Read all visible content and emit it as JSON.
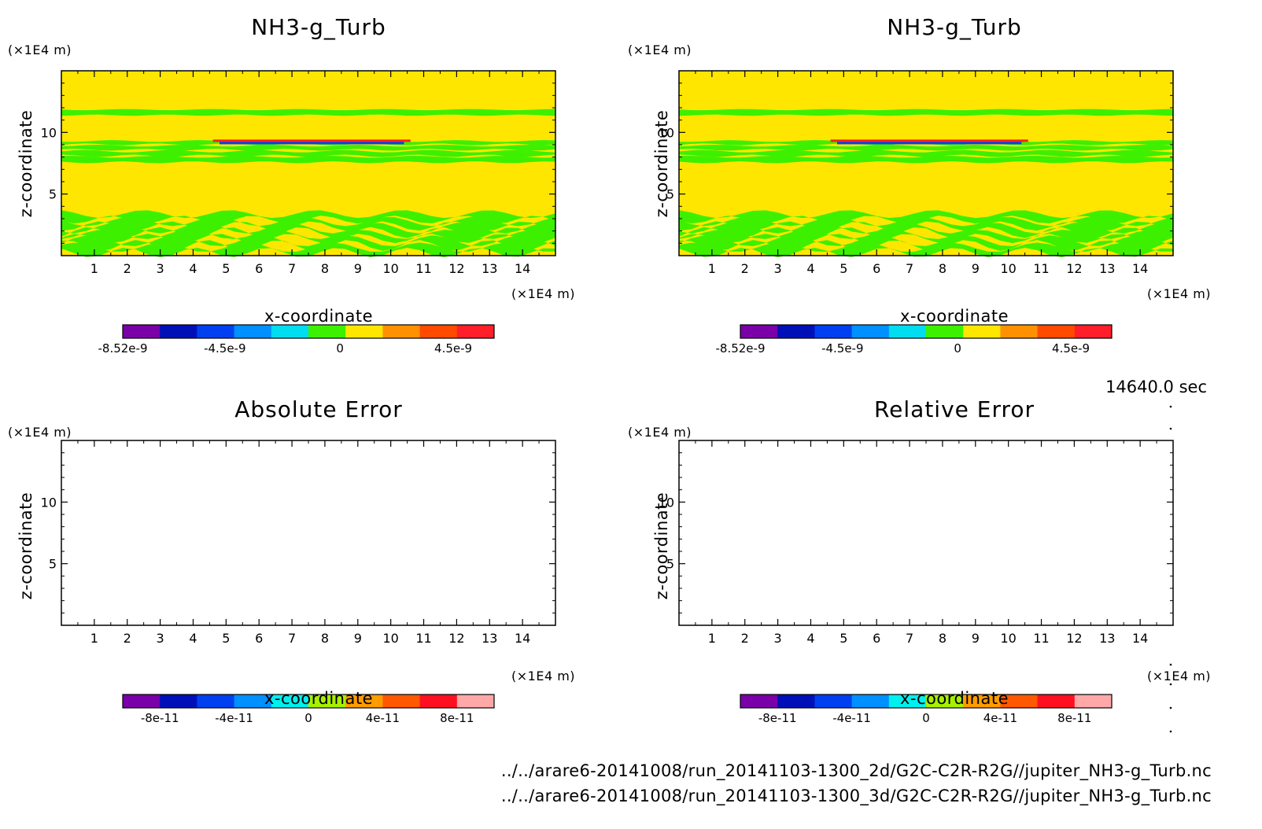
{
  "time_label": "14640.0 sec",
  "file_paths": [
    "../../arare6-20141008/run_20141103-1300_2d/G2C-C2R-R2G//jupiter_NH3-g_Turb.nc",
    "../../arare6-20141008/run_20141103-1300_3d/G2C-C2R-R2G//jupiter_NH3-g_Turb.nc"
  ],
  "colors": {
    "background_fill": "#ffe600",
    "band_fill": "#3cf000",
    "colorbar_nh3": [
      "#7a00a8",
      "#0010b8",
      "#0040f0",
      "#0090ff",
      "#00dcf0",
      "#3cf000",
      "#ffe600",
      "#ff9000",
      "#ff4a00",
      "#ff1e2a",
      "#ffb8b8"
    ],
    "colorbar_err": [
      "#7a00a8",
      "#0010b8",
      "#0040f0",
      "#0090ff",
      "#00f0f0",
      "#a8f000",
      "#ff9c00",
      "#ff5800",
      "#ff1020",
      "#ffa8a8"
    ]
  },
  "chart_data": [
    {
      "type": "heatmap",
      "title": "NH3-g_Turb",
      "xlabel": "x-coordinate",
      "ylabel": "z-coordinate",
      "x_unit": "(×1E4 m)",
      "y_unit": "(×1E4 m)",
      "xlim": [
        0,
        15
      ],
      "ylim": [
        0,
        15
      ],
      "x_ticks": [
        "1",
        "2",
        "3",
        "4",
        "5",
        "6",
        "7",
        "8",
        "9",
        "10",
        "11",
        "12",
        "13",
        "14"
      ],
      "y_ticks": [
        "5",
        "10"
      ],
      "colorbar_ticks": [
        "-8.52e-9",
        "-4.5e-9",
        "0",
        "4.5e-9"
      ]
    },
    {
      "type": "heatmap",
      "title": "NH3-g_Turb",
      "xlabel": "x-coordinate",
      "ylabel": "z-coordinate",
      "x_unit": "(×1E4 m)",
      "y_unit": "(×1E4 m)",
      "xlim": [
        0,
        15
      ],
      "ylim": [
        0,
        15
      ],
      "x_ticks": [
        "1",
        "2",
        "3",
        "4",
        "5",
        "6",
        "7",
        "8",
        "9",
        "10",
        "11",
        "12",
        "13",
        "14"
      ],
      "y_ticks": [
        "5",
        "10"
      ],
      "colorbar_ticks": [
        "-8.52e-9",
        "-4.5e-9",
        "0",
        "4.5e-9"
      ]
    },
    {
      "type": "heatmap",
      "title": "Absolute Error",
      "xlabel": "x-coordinate",
      "ylabel": "z-coordinate",
      "x_unit": "(×1E4 m)",
      "y_unit": "(×1E4 m)",
      "xlim": [
        0,
        15
      ],
      "ylim": [
        0,
        15
      ],
      "x_ticks": [
        "1",
        "2",
        "3",
        "4",
        "5",
        "6",
        "7",
        "8",
        "9",
        "10",
        "11",
        "12",
        "13",
        "14"
      ],
      "y_ticks": [
        "5",
        "10"
      ],
      "colorbar_ticks": [
        "-8e-11",
        "-4e-11",
        "0",
        "4e-11",
        "8e-11"
      ]
    },
    {
      "type": "heatmap",
      "title": "Relative Error",
      "xlabel": "x-coordinate",
      "ylabel": "z-coordinate",
      "x_unit": "(×1E4 m)",
      "y_unit": "(×1E4 m)",
      "xlim": [
        0,
        15
      ],
      "ylim": [
        0,
        15
      ],
      "x_ticks": [
        "1",
        "2",
        "3",
        "4",
        "5",
        "6",
        "7",
        "8",
        "9",
        "10",
        "11",
        "12",
        "13",
        "14"
      ],
      "y_ticks": [
        "5",
        "10"
      ],
      "colorbar_ticks": [
        "-8e-11",
        "-4e-11",
        "0",
        "4e-11",
        "8e-11"
      ]
    }
  ]
}
